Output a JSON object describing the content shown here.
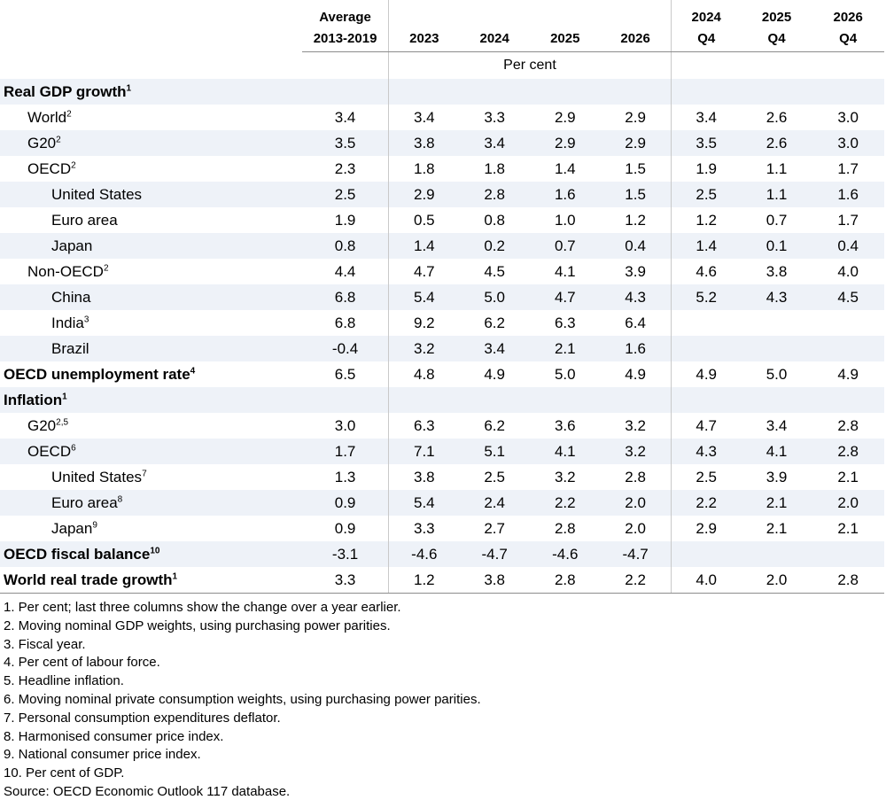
{
  "header": {
    "avg": [
      "Average",
      "2013-2019"
    ],
    "years": [
      "2023",
      "2024",
      "2025",
      "2026"
    ],
    "quarters": [
      [
        "2024",
        "Q4"
      ],
      [
        "2025",
        "Q4"
      ],
      [
        "2026",
        "Q4"
      ]
    ]
  },
  "unit_label": "Per cent",
  "rows": [
    {
      "label": "Real GDP growth",
      "sup": "1",
      "level": 0,
      "values": [
        "",
        "",
        "",
        "",
        "",
        "",
        "",
        ""
      ]
    },
    {
      "label": "World",
      "sup": "2",
      "level": 1,
      "values": [
        "3.4",
        "3.4",
        "3.3",
        "2.9",
        "2.9",
        "3.4",
        "2.6",
        "3.0"
      ]
    },
    {
      "label": "G20",
      "sup": "2",
      "level": 1,
      "values": [
        "3.5",
        "3.8",
        "3.4",
        "2.9",
        "2.9",
        "3.5",
        "2.6",
        "3.0"
      ]
    },
    {
      "label": "OECD",
      "sup": "2",
      "level": 1,
      "values": [
        "2.3",
        "1.8",
        "1.8",
        "1.4",
        "1.5",
        "1.9",
        "1.1",
        "1.7"
      ]
    },
    {
      "label": "United States",
      "sup": "",
      "level": 2,
      "values": [
        "2.5",
        "2.9",
        "2.8",
        "1.6",
        "1.5",
        "2.5",
        "1.1",
        "1.6"
      ]
    },
    {
      "label": "Euro area",
      "sup": "",
      "level": 2,
      "values": [
        "1.9",
        "0.5",
        "0.8",
        "1.0",
        "1.2",
        "1.2",
        "0.7",
        "1.7"
      ]
    },
    {
      "label": "Japan",
      "sup": "",
      "level": 2,
      "values": [
        "0.8",
        "1.4",
        "0.2",
        "0.7",
        "0.4",
        "1.4",
        "0.1",
        "0.4"
      ]
    },
    {
      "label": "Non-OECD",
      "sup": "2",
      "level": 1,
      "values": [
        "4.4",
        "4.7",
        "4.5",
        "4.1",
        "3.9",
        "4.6",
        "3.8",
        "4.0"
      ]
    },
    {
      "label": "China",
      "sup": "",
      "level": 2,
      "values": [
        "6.8",
        "5.4",
        "5.0",
        "4.7",
        "4.3",
        "5.2",
        "4.3",
        "4.5"
      ]
    },
    {
      "label": "India",
      "sup": "3",
      "level": 2,
      "values": [
        "6.8",
        "9.2",
        "6.2",
        "6.3",
        "6.4",
        "",
        "",
        ""
      ]
    },
    {
      "label": "Brazil",
      "sup": "",
      "level": 2,
      "values": [
        "-0.4",
        "3.2",
        "3.4",
        "2.1",
        "1.6",
        "",
        "",
        ""
      ]
    },
    {
      "label": "OECD unemployment rate",
      "sup": "4",
      "level": 0,
      "values": [
        "6.5",
        "4.8",
        "4.9",
        "5.0",
        "4.9",
        "4.9",
        "5.0",
        "4.9"
      ]
    },
    {
      "label": "Inflation",
      "sup": "1",
      "level": 0,
      "values": [
        "",
        "",
        "",
        "",
        "",
        "",
        "",
        ""
      ]
    },
    {
      "label": "G20",
      "sup": "2,5",
      "level": 1,
      "values": [
        "3.0",
        "6.3",
        "6.2",
        "3.6",
        "3.2",
        "4.7",
        "3.4",
        "2.8"
      ]
    },
    {
      "label": "OECD",
      "sup": "6",
      "level": 1,
      "values": [
        "1.7",
        "7.1",
        "5.1",
        "4.1",
        "3.2",
        "4.3",
        "4.1",
        "2.8"
      ]
    },
    {
      "label": "United States",
      "sup": "7",
      "level": 2,
      "values": [
        "1.3",
        "3.8",
        "2.5",
        "3.2",
        "2.8",
        "2.5",
        "3.9",
        "2.1"
      ]
    },
    {
      "label": "Euro area",
      "sup": "8",
      "level": 2,
      "values": [
        "0.9",
        "5.4",
        "2.4",
        "2.2",
        "2.0",
        "2.2",
        "2.1",
        "2.0"
      ]
    },
    {
      "label": "Japan",
      "sup": "9",
      "level": 2,
      "values": [
        "0.9",
        "3.3",
        "2.7",
        "2.8",
        "2.0",
        "2.9",
        "2.1",
        "2.1"
      ]
    },
    {
      "label": "OECD fiscal balance",
      "sup": "10",
      "level": 0,
      "values": [
        "-3.1",
        "-4.6",
        "-4.7",
        "-4.6",
        "-4.7",
        "",
        "",
        ""
      ]
    },
    {
      "label": "World real trade growth",
      "sup": "1",
      "level": 0,
      "values": [
        "3.3",
        "1.2",
        "3.8",
        "2.8",
        "2.2",
        "4.0",
        "2.0",
        "2.8"
      ]
    }
  ],
  "notes": [
    "1.  Per cent; last three columns show the change over a year earlier.",
    "2.  Moving nominal GDP weights, using purchasing power parities.",
    "3.  Fiscal year.",
    "4.  Per cent of labour force.",
    "5.  Headline inflation.",
    "6.  Moving nominal private consumption weights, using purchasing power parities.",
    "7.  Personal consumption expenditures deflator.",
    "8.  Harmonised consumer price index.",
    "9.  National consumer price index.",
    "10.  Per cent of GDP."
  ],
  "source": "Source: OECD Economic Outlook 117 database."
}
